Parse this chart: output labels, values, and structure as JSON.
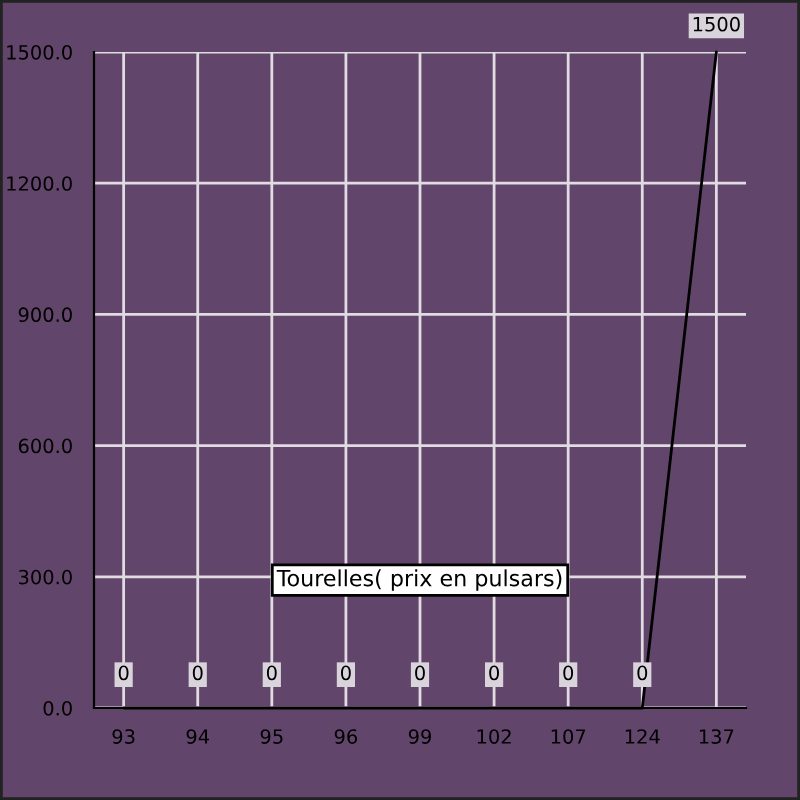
{
  "chart_data": {
    "type": "line",
    "categories": [
      "93",
      "94",
      "95",
      "96",
      "99",
      "102",
      "107",
      "124",
      "137"
    ],
    "series": [
      {
        "color": "#000000",
        "values": [
          0,
          0,
          0,
          0,
          0,
          0,
          0,
          0,
          1500
        ]
      }
    ],
    "ylim": [
      0,
      1500
    ],
    "yticks": [
      {
        "value": 0,
        "label": "0.0"
      },
      {
        "value": 300,
        "label": "300.0"
      },
      {
        "value": 600,
        "label": "600.0"
      },
      {
        "value": 900,
        "label": "900.0"
      },
      {
        "value": 1200,
        "label": "1200.0"
      },
      {
        "value": 1500,
        "label": "1500.0"
      }
    ],
    "grid": true,
    "data_labels": true,
    "marker": "none",
    "line_style": "solid",
    "annotations": [
      "Tourelles( prix en pulsars)"
    ]
  }
}
